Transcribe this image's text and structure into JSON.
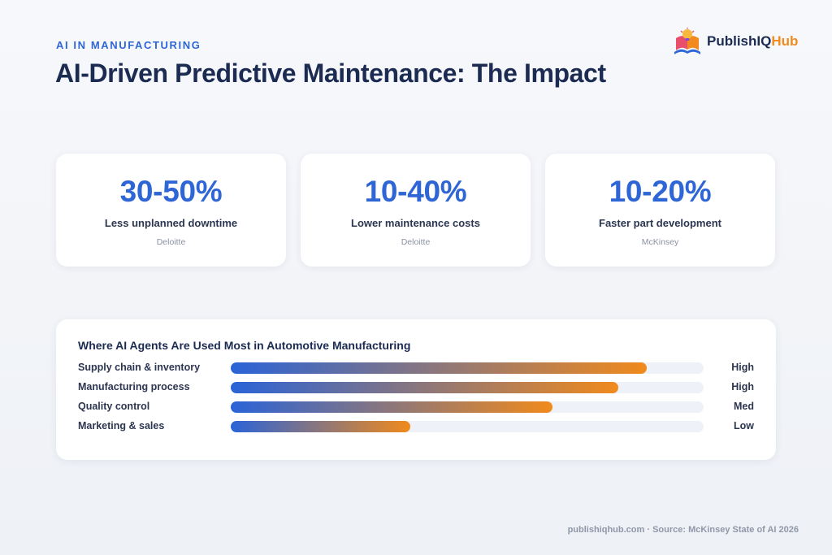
{
  "header": {
    "eyebrow": "AI IN MANUFACTURING",
    "title": "AI-Driven Predictive Maintenance: The Impact"
  },
  "brand": {
    "name_main": "PublishIQ",
    "name_accent": "Hub",
    "logo_icon": "book-lightbulb-logo",
    "accent_color": "#f28a1d"
  },
  "stats": [
    {
      "value": "30-50%",
      "label": "Less unplanned downtime",
      "source": "Deloitte"
    },
    {
      "value": "10-40%",
      "label": "Lower maintenance costs",
      "source": "Deloitte"
    },
    {
      "value": "10-20%",
      "label": "Faster part development",
      "source": "McKinsey"
    }
  ],
  "chart_data": {
    "type": "bar",
    "orientation": "horizontal",
    "title": "Where AI Agents Are Used Most in Automotive Manufacturing",
    "categories": [
      "Supply chain & inventory",
      "Manufacturing process",
      "Quality control",
      "Marketing & sales"
    ],
    "values": [
      0.88,
      0.82,
      0.68,
      0.38
    ],
    "value_labels": [
      "High",
      "High",
      "Med",
      "Low"
    ],
    "xlim": [
      0,
      1
    ],
    "gradient_colors": [
      "#2a63d8",
      "#f08a1c"
    ]
  },
  "footer": {
    "text": "publishiqhub.com · Source: McKinsey State of AI 2026"
  }
}
